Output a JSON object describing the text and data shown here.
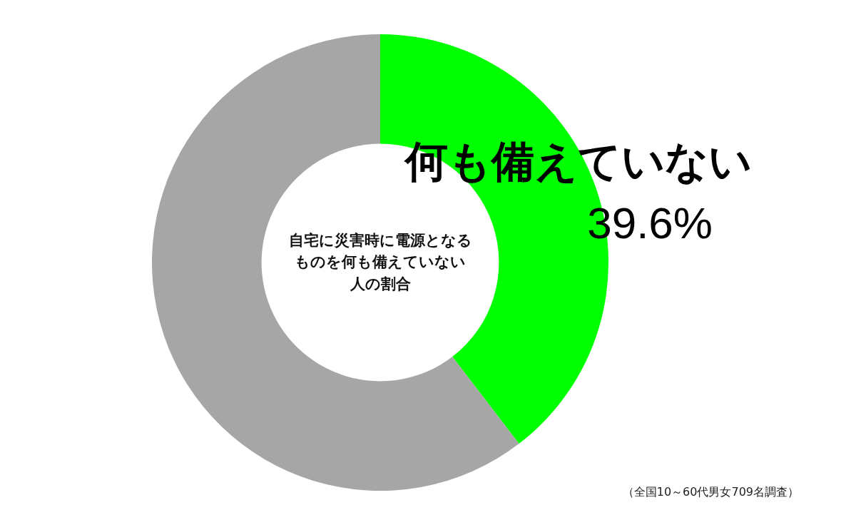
{
  "chart_data": {
    "type": "donut",
    "title": "自宅に災害時に電源となるものを何も備えていない人の割合",
    "categories": [
      "何も備えていない",
      null
    ],
    "values": [
      39.6,
      60.4
    ],
    "value_labels": [
      "39.6%",
      null
    ],
    "colors": [
      "#00ff00",
      "#a6a6a6"
    ],
    "legend": false,
    "annotations": [
      "（全国10～60代男女709名調査）"
    ]
  }
}
